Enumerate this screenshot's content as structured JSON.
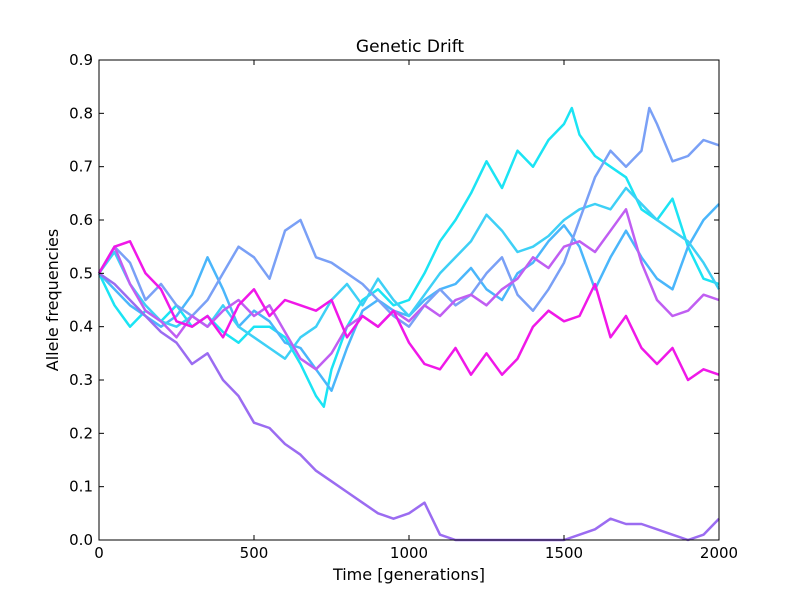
{
  "chart_data": {
    "type": "line",
    "title": "Genetic Drift",
    "xlabel": "Time [generations]",
    "ylabel": "Allele frequencies",
    "xlim": [
      0,
      2000
    ],
    "ylim": [
      0,
      0.9
    ],
    "xticks": [
      0,
      500,
      1000,
      1500,
      2000
    ],
    "xtick_labels": [
      "0",
      "500",
      "1000",
      "1500",
      "2000"
    ],
    "yticks": [
      0,
      0.1,
      0.2,
      0.3,
      0.4,
      0.5,
      0.6,
      0.7,
      0.8,
      0.9
    ],
    "ytick_labels": [
      "0.0",
      "0.1",
      "0.2",
      "0.3",
      "0.4",
      "0.5",
      "0.6",
      "0.7",
      "0.8",
      "0.9"
    ],
    "grid": false,
    "legend": "none",
    "series": [
      {
        "color": "#1be4f4",
        "x": [
          0,
          50,
          100,
          150,
          200,
          250,
          300,
          350,
          400,
          450,
          500,
          550,
          600,
          650,
          700,
          725,
          750,
          800,
          850,
          900,
          950,
          1000,
          1050,
          1100,
          1150,
          1200,
          1250,
          1300,
          1350,
          1400,
          1450,
          1500,
          1525,
          1550,
          1600,
          1650,
          1700,
          1750,
          1800,
          1850,
          1900,
          1950,
          2000
        ],
        "y": [
          0.5,
          0.44,
          0.4,
          0.43,
          0.41,
          0.44,
          0.4,
          0.42,
          0.39,
          0.37,
          0.4,
          0.4,
          0.38,
          0.33,
          0.27,
          0.25,
          0.32,
          0.4,
          0.45,
          0.47,
          0.44,
          0.45,
          0.5,
          0.56,
          0.6,
          0.65,
          0.71,
          0.66,
          0.73,
          0.7,
          0.75,
          0.78,
          0.81,
          0.76,
          0.72,
          0.7,
          0.68,
          0.62,
          0.6,
          0.64,
          0.55,
          0.49,
          0.48
        ]
      },
      {
        "color": "#4ab6fb",
        "x": [
          0,
          50,
          100,
          150,
          200,
          250,
          300,
          350,
          400,
          450,
          500,
          550,
          600,
          650,
          700,
          750,
          800,
          850,
          900,
          950,
          1000,
          1050,
          1100,
          1150,
          1200,
          1250,
          1300,
          1350,
          1400,
          1450,
          1500,
          1550,
          1600,
          1650,
          1700,
          1750,
          1800,
          1850,
          1900,
          1950,
          2000
        ],
        "y": [
          0.5,
          0.47,
          0.44,
          0.42,
          0.4,
          0.42,
          0.46,
          0.53,
          0.47,
          0.4,
          0.43,
          0.41,
          0.37,
          0.36,
          0.32,
          0.28,
          0.36,
          0.43,
          0.45,
          0.43,
          0.42,
          0.45,
          0.47,
          0.48,
          0.51,
          0.47,
          0.45,
          0.5,
          0.52,
          0.56,
          0.59,
          0.55,
          0.47,
          0.53,
          0.58,
          0.53,
          0.49,
          0.47,
          0.55,
          0.6,
          0.63
        ]
      },
      {
        "color": "#3ed0f6",
        "x": [
          0,
          50,
          100,
          150,
          200,
          250,
          300,
          350,
          400,
          450,
          500,
          550,
          600,
          650,
          700,
          750,
          800,
          850,
          900,
          950,
          1000,
          1050,
          1100,
          1150,
          1200,
          1250,
          1300,
          1350,
          1400,
          1450,
          1500,
          1550,
          1600,
          1650,
          1700,
          1750,
          1800,
          1850,
          1900,
          1950,
          2000
        ],
        "y": [
          0.5,
          0.54,
          0.48,
          0.44,
          0.41,
          0.4,
          0.42,
          0.4,
          0.44,
          0.4,
          0.38,
          0.36,
          0.34,
          0.38,
          0.4,
          0.45,
          0.48,
          0.44,
          0.49,
          0.45,
          0.42,
          0.46,
          0.5,
          0.53,
          0.56,
          0.61,
          0.58,
          0.54,
          0.55,
          0.57,
          0.6,
          0.62,
          0.63,
          0.62,
          0.66,
          0.63,
          0.6,
          0.58,
          0.56,
          0.52,
          0.47
        ]
      },
      {
        "color": "#7aa0f6",
        "x": [
          0,
          50,
          100,
          150,
          200,
          250,
          300,
          350,
          400,
          450,
          500,
          550,
          600,
          650,
          700,
          750,
          800,
          850,
          900,
          950,
          1000,
          1050,
          1100,
          1150,
          1200,
          1250,
          1300,
          1350,
          1400,
          1450,
          1500,
          1550,
          1600,
          1650,
          1700,
          1750,
          1775,
          1800,
          1850,
          1900,
          1950,
          2000
        ],
        "y": [
          0.5,
          0.55,
          0.52,
          0.45,
          0.48,
          0.44,
          0.42,
          0.45,
          0.5,
          0.55,
          0.53,
          0.49,
          0.58,
          0.6,
          0.53,
          0.52,
          0.5,
          0.48,
          0.45,
          0.42,
          0.4,
          0.44,
          0.47,
          0.44,
          0.46,
          0.5,
          0.53,
          0.46,
          0.43,
          0.47,
          0.52,
          0.6,
          0.68,
          0.73,
          0.7,
          0.73,
          0.81,
          0.78,
          0.71,
          0.72,
          0.75,
          0.74
        ]
      },
      {
        "color": "#9b6cf1",
        "x": [
          0,
          50,
          100,
          150,
          200,
          250,
          300,
          350,
          400,
          450,
          500,
          550,
          600,
          650,
          700,
          750,
          800,
          850,
          900,
          950,
          1000,
          1050,
          1100,
          1150,
          1200,
          1250,
          1300,
          1350,
          1400,
          1450,
          1500,
          1550,
          1600,
          1650,
          1700,
          1750,
          1800,
          1850,
          1900,
          1950,
          2000
        ],
        "y": [
          0.5,
          0.48,
          0.45,
          0.42,
          0.39,
          0.37,
          0.33,
          0.35,
          0.3,
          0.27,
          0.22,
          0.21,
          0.18,
          0.16,
          0.13,
          0.11,
          0.09,
          0.07,
          0.05,
          0.04,
          0.05,
          0.07,
          0.01,
          0.0,
          0.0,
          0.0,
          0.0,
          0.0,
          0.0,
          0.0,
          0.0,
          0.01,
          0.02,
          0.04,
          0.03,
          0.03,
          0.02,
          0.01,
          0.0,
          0.01,
          0.04
        ]
      },
      {
        "color": "#c05ef2",
        "x": [
          0,
          50,
          100,
          150,
          200,
          250,
          300,
          350,
          400,
          450,
          500,
          550,
          600,
          650,
          700,
          750,
          800,
          850,
          900,
          950,
          1000,
          1050,
          1100,
          1150,
          1200,
          1250,
          1300,
          1350,
          1400,
          1450,
          1500,
          1550,
          1600,
          1650,
          1700,
          1750,
          1800,
          1850,
          1900,
          1950,
          2000
        ],
        "y": [
          0.5,
          0.55,
          0.48,
          0.43,
          0.41,
          0.38,
          0.42,
          0.4,
          0.43,
          0.45,
          0.42,
          0.44,
          0.39,
          0.34,
          0.32,
          0.35,
          0.4,
          0.42,
          0.4,
          0.43,
          0.41,
          0.44,
          0.42,
          0.45,
          0.46,
          0.44,
          0.47,
          0.49,
          0.53,
          0.51,
          0.55,
          0.56,
          0.54,
          0.58,
          0.62,
          0.52,
          0.45,
          0.42,
          0.43,
          0.46,
          0.45
        ]
      },
      {
        "color": "#f018e8",
        "x": [
          0,
          50,
          100,
          150,
          200,
          250,
          300,
          350,
          400,
          450,
          500,
          550,
          600,
          650,
          700,
          750,
          800,
          850,
          900,
          950,
          1000,
          1050,
          1100,
          1150,
          1200,
          1250,
          1300,
          1350,
          1400,
          1450,
          1500,
          1550,
          1600,
          1650,
          1700,
          1750,
          1800,
          1850,
          1900,
          1950,
          2000
        ],
        "y": [
          0.5,
          0.55,
          0.56,
          0.5,
          0.47,
          0.41,
          0.4,
          0.42,
          0.38,
          0.44,
          0.47,
          0.42,
          0.45,
          0.44,
          0.43,
          0.45,
          0.38,
          0.42,
          0.4,
          0.43,
          0.37,
          0.33,
          0.32,
          0.36,
          0.31,
          0.35,
          0.31,
          0.34,
          0.4,
          0.43,
          0.41,
          0.42,
          0.48,
          0.38,
          0.42,
          0.36,
          0.33,
          0.36,
          0.3,
          0.32,
          0.31
        ]
      }
    ]
  }
}
